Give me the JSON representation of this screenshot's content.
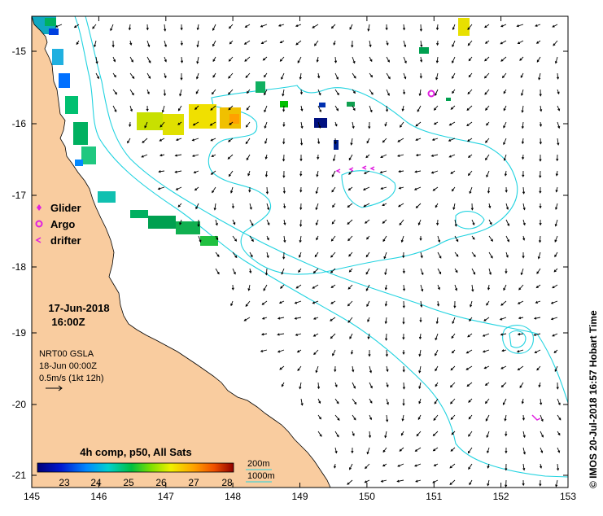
{
  "map": {
    "x_ticks": [
      "145",
      "146",
      "147",
      "148",
      "149",
      "150",
      "151",
      "152",
      "153"
    ],
    "y_ticks": [
      "-15",
      "-16",
      "-17",
      "-18",
      "-19",
      "-20",
      "-21"
    ]
  },
  "legend": {
    "glider": "Glider",
    "argo": "Argo",
    "drifter": "drifter",
    "marker_colors": {
      "glider": "#e020e0",
      "argo": "#e020e0",
      "drifter": "#e020e0"
    }
  },
  "timestamp": {
    "date": "17-Jun-2018",
    "time": "16:00Z"
  },
  "current_info": {
    "product": "NRT00 GSLA",
    "date": "18-Jun 00:00Z",
    "scale": "0.5m/s (1kt 12h)"
  },
  "colorbar": {
    "title": "4h comp, p50, All Sats",
    "ticks": [
      "23",
      "24",
      "25",
      "26",
      "27",
      "28"
    ]
  },
  "isobaths": {
    "shallow": "200m",
    "deep": "1000m",
    "color": "#22d3e0"
  },
  "credit": "© IMOS 20-Jul-2018 16:57 Hobart Time",
  "colors": {
    "land": "#f9cc9f",
    "contour": "#22d3e0",
    "marker": "#e020e0"
  }
}
